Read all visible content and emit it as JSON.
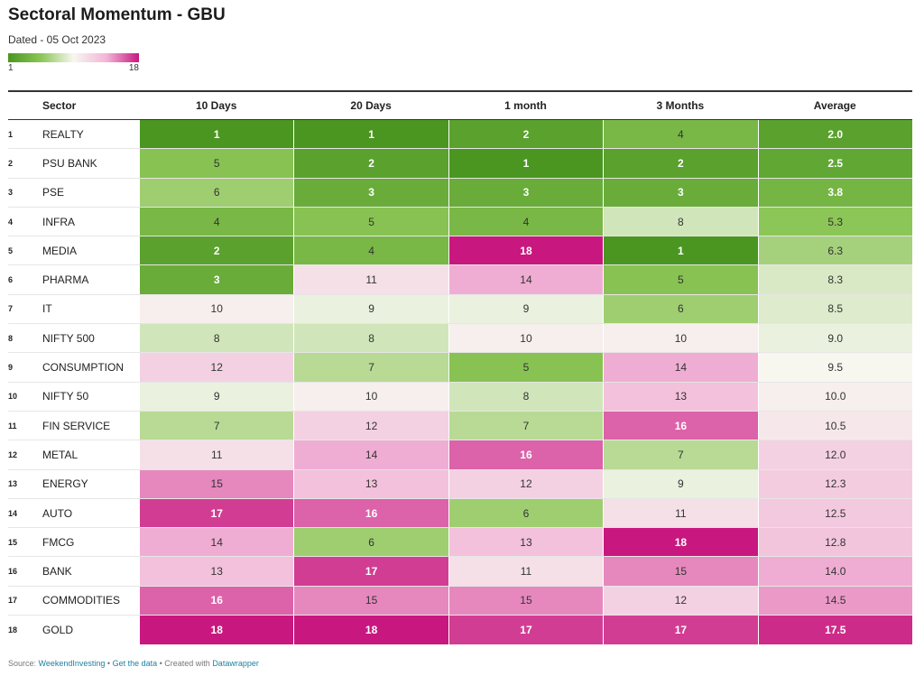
{
  "title": "Sectoral Momentum - GBU",
  "subtitle": "Dated - 05 Oct 2023",
  "legend": {
    "min": "1",
    "max": "18",
    "colors": [
      "#4a9621",
      "#8cc556",
      "#f7f7f0",
      "#f2b6d8",
      "#c8187f"
    ]
  },
  "footer": {
    "source_prefix": "Source: ",
    "source_link": "WeekendInvesting",
    "sep1": " • ",
    "data_link": "Get the data",
    "sep2": " • Created with ",
    "dw_link": "Datawrapper"
  },
  "chart_data": {
    "type": "table",
    "columns": [
      "",
      "Sector",
      "10 Days",
      "20 Days",
      "1 month",
      "3 Months",
      "Average"
    ],
    "rows": [
      [
        "1",
        "REALTY",
        1,
        1,
        2,
        4,
        "2.0"
      ],
      [
        "2",
        "PSU BANK",
        5,
        2,
        1,
        2,
        "2.5"
      ],
      [
        "3",
        "PSE",
        6,
        3,
        3,
        3,
        "3.8"
      ],
      [
        "4",
        "INFRA",
        4,
        5,
        4,
        8,
        "5.3"
      ],
      [
        "5",
        "MEDIA",
        2,
        4,
        18,
        1,
        "6.3"
      ],
      [
        "6",
        "PHARMA",
        3,
        11,
        14,
        5,
        "8.3"
      ],
      [
        "7",
        "IT",
        10,
        9,
        9,
        6,
        "8.5"
      ],
      [
        "8",
        "NIFTY 500",
        8,
        8,
        10,
        10,
        "9.0"
      ],
      [
        "9",
        "CONSUMPTION",
        12,
        7,
        5,
        14,
        "9.5"
      ],
      [
        "10",
        "NIFTY 50",
        9,
        10,
        8,
        13,
        "10.0"
      ],
      [
        "11",
        "FIN SERVICE",
        7,
        12,
        7,
        16,
        "10.5"
      ],
      [
        "12",
        "METAL",
        11,
        14,
        16,
        7,
        "12.0"
      ],
      [
        "13",
        "ENERGY",
        15,
        13,
        12,
        9,
        "12.3"
      ],
      [
        "14",
        "AUTO",
        17,
        16,
        6,
        11,
        "12.5"
      ],
      [
        "15",
        "FMCG",
        14,
        6,
        13,
        18,
        "12.8"
      ],
      [
        "16",
        "BANK",
        13,
        17,
        11,
        15,
        "14.0"
      ],
      [
        "17",
        "COMMODITIES",
        16,
        15,
        15,
        12,
        "14.5"
      ],
      [
        "18",
        "GOLD",
        18,
        18,
        17,
        17,
        "17.5"
      ]
    ],
    "color_scale": {
      "min": 1,
      "max": 18
    }
  }
}
